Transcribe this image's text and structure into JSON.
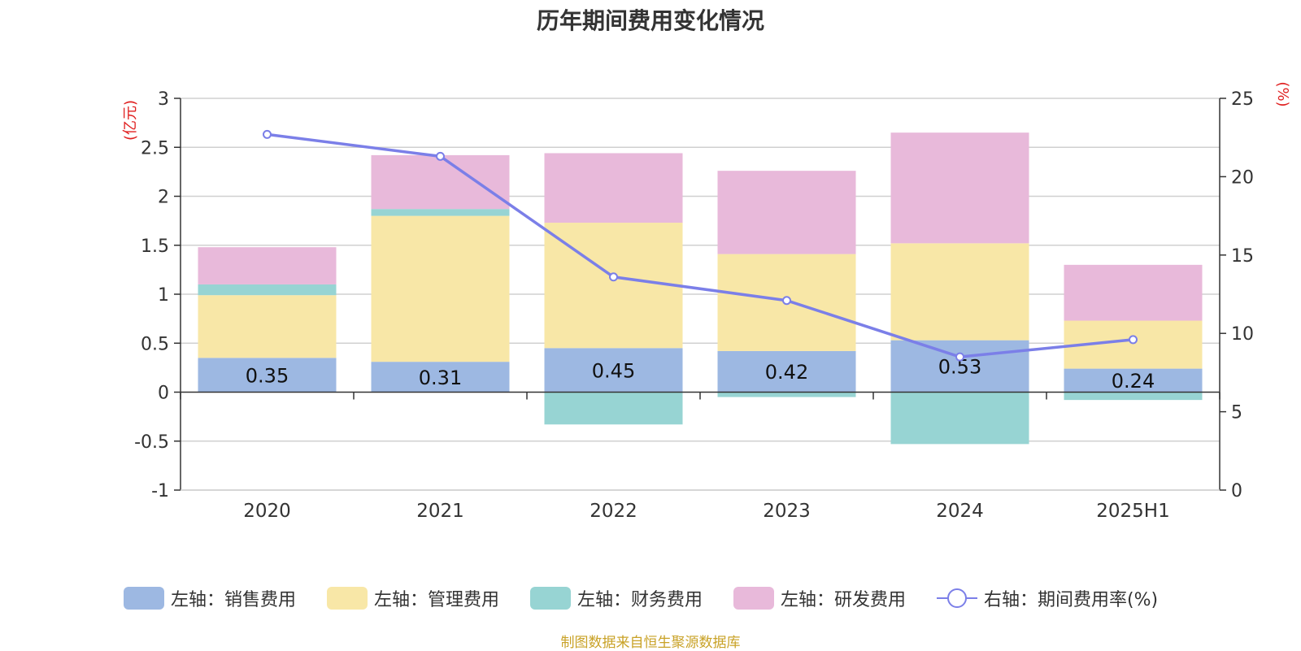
{
  "chart_data": {
    "type": "bar",
    "title": "历年期间费用变化情况",
    "categories": [
      "2020",
      "2021",
      "2022",
      "2023",
      "2024",
      "2025H1"
    ],
    "left_axis": {
      "unit_label": "(亿元)",
      "min": -1,
      "max": 3,
      "ticks": [
        "3",
        "2.5",
        "2",
        "1.5",
        "1",
        "0.5",
        "0",
        "-0.5",
        "-1"
      ],
      "tick_values": [
        3,
        2.5,
        2,
        1.5,
        1,
        0.5,
        0,
        -0.5,
        -1
      ]
    },
    "right_axis": {
      "unit_label": "(%)",
      "min": 0,
      "max": 25,
      "ticks": [
        "25",
        "20",
        "15",
        "10",
        "5",
        "0"
      ],
      "tick_values": [
        25,
        20,
        15,
        10,
        5,
        0
      ]
    },
    "series": [
      {
        "name": "左轴：销售费用",
        "type": "bar",
        "axis": "left",
        "color": "#9db8e2",
        "values": [
          0.35,
          0.31,
          0.45,
          0.42,
          0.53,
          0.24
        ],
        "labels": [
          "0.35",
          "0.31",
          "0.45",
          "0.42",
          "0.53",
          "0.24"
        ]
      },
      {
        "name": "左轴：管理费用",
        "type": "bar",
        "axis": "left",
        "color": "#f8e7a7",
        "values": [
          0.64,
          1.49,
          1.28,
          0.99,
          0.99,
          0.49
        ]
      },
      {
        "name": "左轴：财务费用",
        "type": "bar",
        "axis": "left",
        "color": "#97d4d3",
        "values": [
          0.11,
          0.07,
          -0.33,
          -0.05,
          -0.53,
          -0.08
        ]
      },
      {
        "name": "左轴：研发费用",
        "type": "bar",
        "axis": "left",
        "color": "#e8b9da",
        "values": [
          0.38,
          0.55,
          0.71,
          0.85,
          1.13,
          0.57
        ]
      },
      {
        "name": "右轴：期间费用率(%)",
        "type": "line",
        "axis": "right",
        "color": "#7b7fe8",
        "values": [
          22.7,
          21.3,
          13.6,
          12.1,
          8.5,
          9.6
        ]
      }
    ],
    "grid": true,
    "legend_position": "bottom"
  },
  "source_text": "制图数据来自恒生聚源数据库"
}
